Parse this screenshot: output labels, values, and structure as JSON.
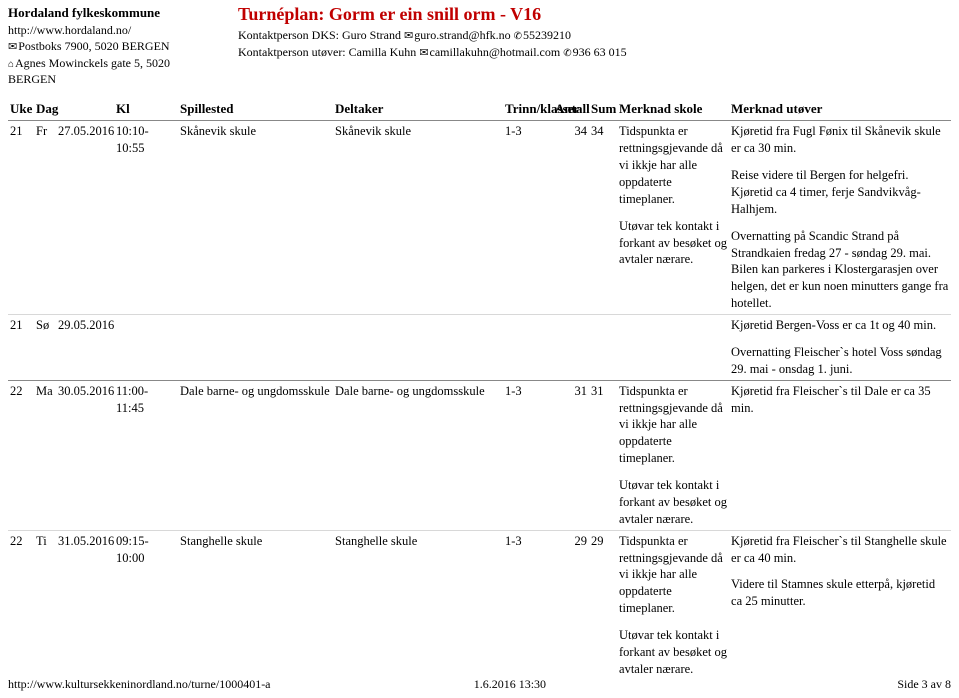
{
  "org": {
    "name": "Hordaland fylkeskommune",
    "url": "http://www.hordaland.no/",
    "postbox": "Postboks 7900, 5020 BERGEN",
    "address": "Agnes Mowinckels gate 5, 5020 BERGEN"
  },
  "title": {
    "main": "Turnéplan: Gorm er ein snill orm - V16",
    "line1_a": "Kontaktperson DKS: Guro Strand",
    "line1_b": "guro.strand@hfk.no",
    "line1_c": "55239210",
    "line2_a": "Kontaktperson utøver: Camilla Kuhn",
    "line2_b": "camillakuhn@hotmail.com",
    "line2_c": "936 63 015"
  },
  "headers": {
    "uke": "Uke",
    "dag": "Dag",
    "kl": "Kl",
    "spillested": "Spillested",
    "deltaker": "Deltaker",
    "trinn": "Trinn/klasser",
    "antall": "Antall",
    "sum": "Sum",
    "mskole": "Merknad skole",
    "mutover": "Merknad utøver"
  },
  "merknad_skole_generic": {
    "p1": "Tidspunkta er rettningsgjevande då vi ikkje har alle oppdaterte timeplaner.",
    "p2": "Utøvar tek kontakt i forkant av besøket og avtaler nærare."
  },
  "rows": [
    {
      "uke": "21",
      "dag": "Fr",
      "dato": "27.05.2016",
      "kl": "10:10-10:55",
      "spillested": "Skånevik skule",
      "deltaker": "Skånevik skule",
      "trinn": "1-3",
      "antall": "34",
      "sum": "34",
      "utover": {
        "p1": "Kjøretid fra Fugl Fønix til Skånevik skule er ca 30 min.",
        "p2": "Reise videre til Bergen for helgefri. Kjøretid ca 4 timer, ferje Sandvikvåg-Halhjem.",
        "p3": "Overnatting på Scandic Strand på Strandkaien fredag 27 - søndag 29. mai. Bilen kan parkeres i Klostergarasjen over helgen, det er kun noen minutters gange fra hotellet."
      }
    },
    {
      "uke": "21",
      "dag": "Sø",
      "dato": "29.05.2016",
      "kl": "",
      "spillested": "",
      "deltaker": "",
      "trinn": "",
      "antall": "",
      "sum": "",
      "utover": {
        "p1": "Kjøretid Bergen-Voss er ca 1t og 40 min.",
        "p2": "Overnatting Fleischer`s hotel Voss søndag 29. mai - onsdag 1. juni."
      }
    },
    {
      "uke": "22",
      "dag": "Ma",
      "dato": "30.05.2016",
      "kl": "11:00-11:45",
      "spillested": "Dale barne- og ungdomsskule",
      "deltaker": "Dale barne- og ungdomsskule",
      "trinn": "1-3",
      "antall": "31",
      "sum": "31",
      "utover": {
        "p1": "Kjøretid fra Fleischer`s til Dale er ca 35 min."
      }
    },
    {
      "uke": "22",
      "dag": "Ti",
      "dato": "31.05.2016",
      "kl": "09:15-10:00",
      "spillested": "Stanghelle skule",
      "deltaker": "Stanghelle skule",
      "trinn": "1-3",
      "antall": "29",
      "sum": "29",
      "utover": {
        "p1": "Kjøretid fra Fleischer`s til Stanghelle skule er ca 40 min.",
        "p2": "Videre til Stamnes skule etterpå, kjøretid ca 25 minutter."
      }
    }
  ],
  "footer": {
    "url": "http://www.kultursekkeninordland.no/turne/1000401-a",
    "timestamp": "1.6.2016 13:30",
    "page": "Side 3 av 8"
  }
}
